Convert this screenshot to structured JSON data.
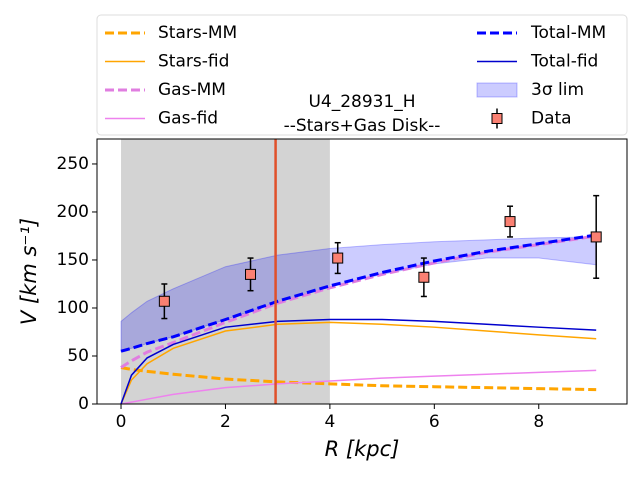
{
  "chart_data": {
    "type": "line",
    "title": "U4_28931_H",
    "subtitle": "--Stars+Gas Disk--",
    "x_label": "R [kpc]",
    "y_label": "V [km s⁻¹]",
    "xlim": [
      -0.46,
      9.69
    ],
    "ylim": [
      0,
      276
    ],
    "xticks": [
      0,
      2,
      4,
      6,
      8
    ],
    "yticks": [
      0,
      50,
      100,
      150,
      200,
      250
    ],
    "span": [
      0,
      4
    ],
    "span_color": "#d3d3d3",
    "vline": 2.96,
    "vline_color": "#e0502a",
    "x": [
      0,
      0.2,
      0.5,
      1,
      2,
      3,
      4,
      5,
      6,
      7,
      8,
      9.1
    ],
    "series": [
      {
        "name": "Stars-MM",
        "color": "#ffa500",
        "dashed": true,
        "values": [
          38,
          36,
          34,
          31,
          26,
          23,
          21,
          19,
          18,
          17,
          16,
          15
        ]
      },
      {
        "name": "Stars-fid",
        "color": "#ffa500",
        "dashed": false,
        "values": [
          0,
          25,
          42,
          58,
          76,
          83,
          85,
          83,
          80,
          76,
          72,
          68
        ]
      },
      {
        "name": "Gas-MM",
        "color": "#e07ee0",
        "dashed": true,
        "values": [
          38,
          45,
          54,
          64,
          85,
          105,
          121,
          135,
          147,
          158,
          166,
          175
        ]
      },
      {
        "name": "Gas-fid",
        "color": "#ee82ee",
        "dashed": false,
        "values": [
          0,
          2,
          5,
          10,
          17,
          21,
          24,
          27,
          29,
          31,
          33,
          35
        ]
      },
      {
        "name": "Total-MM",
        "color": "#0000ff",
        "dashed": true,
        "values": [
          55,
          58,
          63,
          70,
          88,
          107,
          123,
          137,
          149,
          159,
          167,
          176
        ]
      },
      {
        "name": "Total-fid",
        "color": "#0000cd",
        "dashed": false,
        "values": [
          0,
          30,
          48,
          62,
          80,
          86,
          88,
          88,
          86,
          83,
          80,
          77
        ]
      }
    ],
    "band": {
      "name": "3σ lim",
      "color": "#0000ff",
      "upper": [
        86,
        95,
        107,
        120,
        143,
        155,
        162,
        166,
        169,
        171,
        173,
        174
      ],
      "lower": [
        55,
        58,
        63,
        70,
        88,
        106,
        122,
        135,
        146,
        152,
        152,
        145
      ]
    },
    "data": {
      "name": "Data",
      "color": "#fa8072",
      "x": [
        0.83,
        2.48,
        4.15,
        5.8,
        7.45,
        9.1
      ],
      "values": [
        107,
        135,
        152,
        132,
        190,
        174
      ],
      "errors": [
        18,
        17,
        16,
        20,
        16,
        43
      ]
    }
  }
}
